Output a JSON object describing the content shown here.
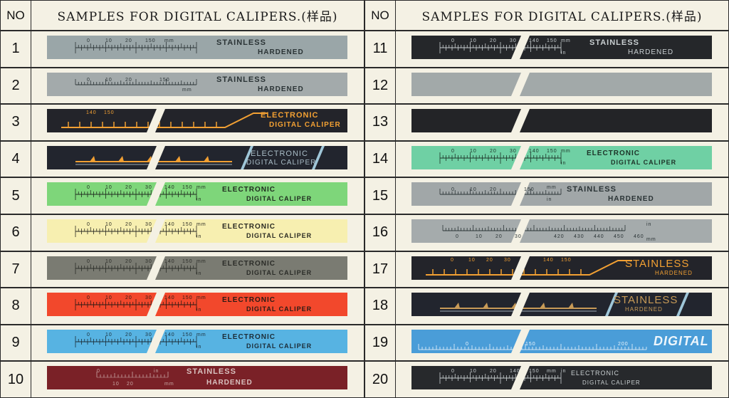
{
  "header": {
    "no_label": "NO",
    "title": "SAMPLES FOR DIGITAL CALIPERS.(样品)"
  },
  "samples": [
    {
      "no": "1",
      "bg": "#9aa6a8",
      "fg": "#2b3436",
      "scale": "ruler",
      "cut": false,
      "line1": "STAINLESS",
      "line2": "HARDENED",
      "ticks": [
        "0",
        "10",
        "20",
        "150",
        "mm"
      ]
    },
    {
      "no": "2",
      "bg": "#a3aaab",
      "fg": "#2b3436",
      "scale": "dual",
      "cut": false,
      "line1": "STAINLESS",
      "line2": "HARDENED",
      "ticks": [
        "0",
        "10",
        "20",
        "150",
        "mm"
      ]
    },
    {
      "no": "3",
      "bg": "#23242a",
      "fg": "#f2a033",
      "scale": "orange",
      "cut": true,
      "line1": "ELECTRONIC",
      "line2": "DIGITAL CALIPER",
      "ticks": [
        "140",
        "150"
      ]
    },
    {
      "no": "4",
      "bg": "#22252e",
      "fg": "#f2a033",
      "scale": "orange-box",
      "cut": true,
      "line1": "ELECTRONIC",
      "line2": "DIGITAL CALIPER",
      "ticks": []
    },
    {
      "no": "5",
      "bg": "#7ed67a",
      "fg": "#1f2a1f",
      "scale": "ruler",
      "cut": true,
      "line1": "ELECTRONIC",
      "line2": "DIGITAL CALIPER",
      "ticks": [
        "0",
        "10",
        "20",
        "30",
        "140",
        "150",
        "mm",
        "in"
      ]
    },
    {
      "no": "6",
      "bg": "#f7efb0",
      "fg": "#2a2a22",
      "scale": "ruler",
      "cut": true,
      "line1": "ELECTRONIC",
      "line2": "DIGITAL CALIPER",
      "ticks": [
        "0",
        "10",
        "20",
        "30",
        "140",
        "150",
        "mm",
        "in"
      ]
    },
    {
      "no": "7",
      "bg": "#7a7b72",
      "fg": "#2b2c28",
      "scale": "ruler",
      "cut": true,
      "line1": "ELECTRONIC",
      "line2": "DIGITAL CALIPER",
      "ticks": [
        "0",
        "10",
        "20",
        "30",
        "140",
        "150",
        "mm",
        "in"
      ]
    },
    {
      "no": "8",
      "bg": "#f2482c",
      "fg": "#2b1a15",
      "scale": "ruler",
      "cut": true,
      "line1": "ELECTRONIC",
      "line2": "DIGITAL CALIPER",
      "ticks": [
        "0",
        "10",
        "20",
        "30",
        "140",
        "150",
        "mm",
        "in"
      ]
    },
    {
      "no": "9",
      "bg": "#57b3e2",
      "fg": "#1c2d38",
      "scale": "ruler",
      "cut": true,
      "line1": "ELECTRONIC",
      "line2": "DIGITAL CALIPER",
      "ticks": [
        "0",
        "10",
        "20",
        "30",
        "140",
        "150",
        "mm",
        "in"
      ]
    },
    {
      "no": "10",
      "bg": "#7a2127",
      "fg": "#c9a9a6",
      "scale": "faint",
      "cut": false,
      "line1": "STAINLESS",
      "line2": "HARDENED",
      "ticks": [
        "0",
        "10",
        "20",
        "in",
        "mm"
      ]
    },
    {
      "no": "11",
      "bg": "#25272a",
      "fg": "#c9cfd1",
      "scale": "ruler-light",
      "cut": true,
      "line1": "STAINLESS",
      "line2": "HARDENED",
      "ticks": [
        "0",
        "10",
        "20",
        "30",
        "140",
        "150",
        "mm",
        "in"
      ]
    },
    {
      "no": "12",
      "bg": "#a2a9a9",
      "fg": "#2b3436",
      "scale": "none",
      "cut": true,
      "line1": "",
      "line2": "",
      "ticks": []
    },
    {
      "no": "13",
      "bg": "#232427",
      "fg": "#c9cfd1",
      "scale": "none",
      "cut": true,
      "line1": "",
      "line2": "",
      "ticks": []
    },
    {
      "no": "14",
      "bg": "#6fd0a4",
      "fg": "#1d3328",
      "scale": "ruler",
      "cut": true,
      "line1": "ELECTRONIC",
      "line2": "DIGITAL CALIPER",
      "ticks": [
        "0",
        "10",
        "20",
        "30",
        "140",
        "150",
        "mm",
        "in"
      ]
    },
    {
      "no": "15",
      "bg": "#a1a7a8",
      "fg": "#2b3436",
      "scale": "dual",
      "cut": true,
      "line1": "STAINLESS",
      "line2": "HARDENED",
      "ticks": [
        "0",
        "10",
        "20",
        "150",
        "in",
        "mm"
      ]
    },
    {
      "no": "16",
      "bg": "#a5abac",
      "fg": "#2b3436",
      "scale": "long",
      "cut": true,
      "line1": "",
      "line2": "",
      "ticks": [
        "0",
        "10",
        "20",
        "30",
        "420",
        "430",
        "440",
        "450",
        "460",
        "in",
        "mm"
      ]
    },
    {
      "no": "17",
      "bg": "#23242a",
      "fg": "#f2a033",
      "scale": "orange",
      "cut": true,
      "line1": "STAINLESS",
      "line2": "HARDENED",
      "ticks": [
        "0",
        "10",
        "20",
        "30",
        "140",
        "150"
      ]
    },
    {
      "no": "18",
      "bg": "#22252e",
      "fg": "#c79a57",
      "scale": "orange-box",
      "cut": true,
      "line1": "STAINLESS",
      "line2": "HARDENED",
      "ticks": []
    },
    {
      "no": "19",
      "bg": "#4a9dd8",
      "fg": "#eef6fc",
      "scale": "digital",
      "cut": true,
      "line1": "DIGITAL",
      "line2": "",
      "ticks": [
        "0",
        "150",
        "200"
      ]
    },
    {
      "no": "20",
      "bg": "#27292c",
      "fg": "#c9cfd1",
      "scale": "ruler-light",
      "cut": true,
      "line1": "ELECTRONIC",
      "line2": "DIGITAL CALIPER",
      "ticks": [
        "0",
        "10",
        "20",
        "140",
        "150",
        "mm",
        "in"
      ]
    }
  ]
}
